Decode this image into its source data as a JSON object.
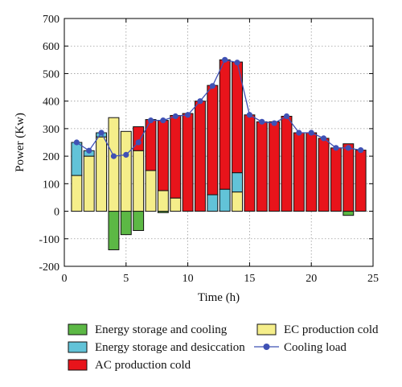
{
  "chart_data": {
    "type": "bar",
    "xlabel": "Time (h)",
    "ylabel": "Power (Kw)",
    "xlim": [
      0,
      25
    ],
    "ylim": [
      -200,
      700
    ],
    "x_ticks": [
      0,
      5,
      10,
      15,
      20,
      25
    ],
    "y_ticks": [
      -200,
      -100,
      0,
      100,
      200,
      300,
      400,
      500,
      600,
      700
    ],
    "grid": true,
    "legend_position": "bottom",
    "x": [
      1,
      2,
      3,
      4,
      5,
      6,
      7,
      8,
      9,
      10,
      11,
      12,
      13,
      14,
      15,
      16,
      17,
      18,
      19,
      20,
      21,
      22,
      23,
      24
    ],
    "series": [
      {
        "name": "Energy storage and cooling",
        "color": "#5cb845",
        "values": [
          0,
          0,
          0,
          -140,
          -85,
          -70,
          0,
          -5,
          0,
          0,
          0,
          0,
          0,
          0,
          0,
          0,
          0,
          0,
          0,
          0,
          0,
          0,
          -15,
          0
        ]
      },
      {
        "name": "EC production cold",
        "color": "#f5ee8a",
        "values": [
          130,
          200,
          270,
          340,
          290,
          220,
          148,
          75,
          48,
          0,
          0,
          0,
          0,
          70,
          0,
          0,
          0,
          0,
          0,
          0,
          0,
          0,
          0,
          0
        ]
      },
      {
        "name": "Energy storage and desiccation",
        "color": "#62c3d8",
        "values": [
          120,
          20,
          15,
          0,
          0,
          0,
          0,
          0,
          0,
          0,
          0,
          60,
          80,
          70,
          0,
          0,
          0,
          0,
          0,
          0,
          0,
          0,
          0,
          0
        ]
      },
      {
        "name": "AC production cold",
        "color": "#e8141b",
        "values": [
          0,
          0,
          0,
          0,
          0,
          87,
          185,
          255,
          300,
          355,
          400,
          397,
          470,
          402,
          350,
          325,
          325,
          345,
          285,
          285,
          265,
          230,
          245,
          222
        ]
      }
    ],
    "cooling_load": {
      "name": "Cooling load",
      "color": "#3f51b5",
      "values": [
        250,
        220,
        285,
        200,
        205,
        250,
        330,
        330,
        345,
        350,
        400,
        455,
        550,
        540,
        350,
        325,
        320,
        345,
        285,
        285,
        265,
        230,
        230,
        222
      ]
    }
  },
  "legend": {
    "items": [
      {
        "label": "Energy storage and cooling",
        "color": "#5cb845",
        "kind": "box"
      },
      {
        "label": "EC production cold",
        "color": "#f5ee8a",
        "kind": "box"
      },
      {
        "label": "Energy storage and desiccation",
        "color": "#62c3d8",
        "kind": "box"
      },
      {
        "label": "Cooling load",
        "color": "#3f51b5",
        "kind": "line-marker"
      },
      {
        "label": "AC production cold",
        "color": "#e8141b",
        "kind": "box"
      }
    ]
  }
}
